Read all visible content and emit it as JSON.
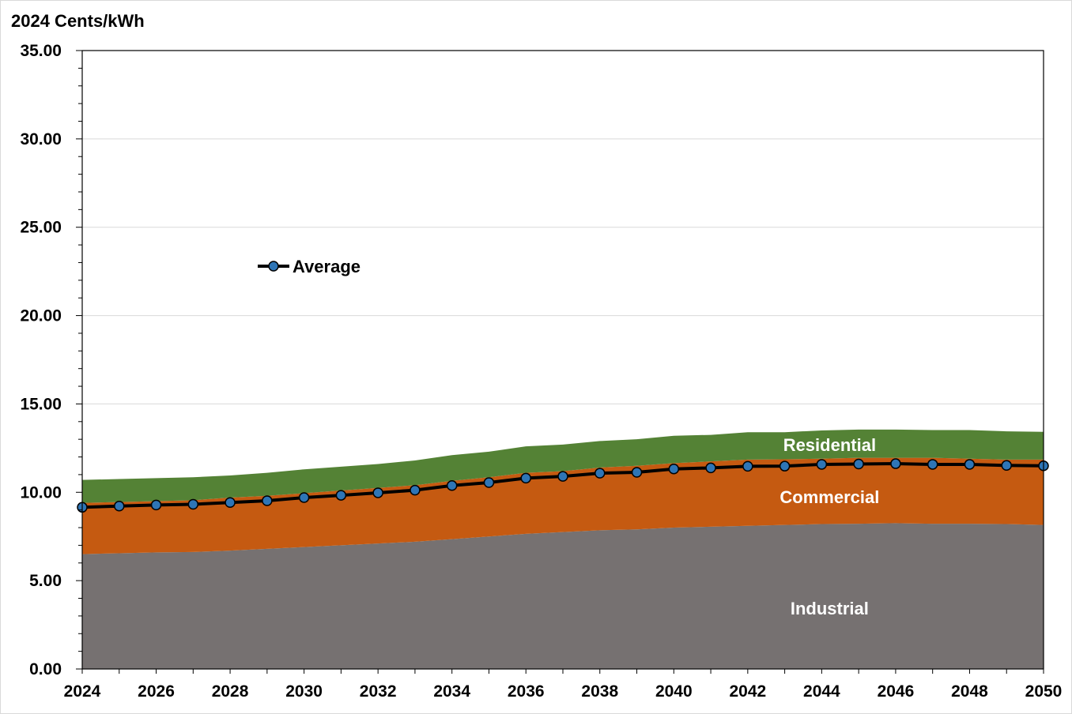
{
  "chart_data": {
    "type": "area",
    "ylabel": "2024 Cents/kWh",
    "ylim": [
      0,
      35
    ],
    "yticks": [
      "0.00",
      "5.00",
      "10.00",
      "15.00",
      "20.00",
      "25.00",
      "30.00",
      "35.00"
    ],
    "xlim": [
      2024,
      2050
    ],
    "xticks": [
      "2024",
      "2026",
      "2028",
      "2030",
      "2032",
      "2034",
      "2036",
      "2038",
      "2040",
      "2042",
      "2044",
      "2046",
      "2048",
      "2050"
    ],
    "x": [
      2024,
      2025,
      2026,
      2027,
      2028,
      2029,
      2030,
      2031,
      2032,
      2033,
      2034,
      2035,
      2036,
      2037,
      2038,
      2039,
      2040,
      2041,
      2042,
      2043,
      2044,
      2045,
      2046,
      2047,
      2048,
      2049,
      2050
    ],
    "stacked_series": [
      {
        "name": "Industrial",
        "color": "#767171",
        "values": [
          6.5,
          6.55,
          6.6,
          6.62,
          6.7,
          6.8,
          6.9,
          7.0,
          7.1,
          7.2,
          7.35,
          7.5,
          7.65,
          7.75,
          7.85,
          7.9,
          8.0,
          8.05,
          8.1,
          8.15,
          8.2,
          8.22,
          8.25,
          8.22,
          8.22,
          8.2,
          8.15
        ]
      },
      {
        "name": "Commercial",
        "color": "#C55A11",
        "values": [
          9.4,
          9.45,
          9.5,
          9.55,
          9.7,
          9.8,
          9.95,
          10.1,
          10.25,
          10.4,
          10.65,
          10.85,
          11.1,
          11.2,
          11.4,
          11.5,
          11.65,
          11.75,
          11.85,
          11.87,
          11.9,
          11.95,
          11.95,
          11.95,
          11.9,
          11.85,
          11.85
        ]
      },
      {
        "name": "Residential",
        "color": "#548235",
        "values": [
          10.7,
          10.75,
          10.8,
          10.85,
          10.95,
          11.1,
          11.3,
          11.45,
          11.6,
          11.8,
          12.1,
          12.3,
          12.6,
          12.7,
          12.9,
          13.0,
          13.2,
          13.25,
          13.4,
          13.4,
          13.5,
          13.55,
          13.55,
          13.52,
          13.52,
          13.45,
          13.42
        ]
      }
    ],
    "series": [
      {
        "name": "Average",
        "color": "#000000",
        "marker_color": "#2E75B6",
        "values": [
          9.15,
          9.22,
          9.28,
          9.32,
          9.42,
          9.52,
          9.7,
          9.83,
          9.97,
          10.12,
          10.38,
          10.55,
          10.8,
          10.9,
          11.08,
          11.13,
          11.32,
          11.38,
          11.47,
          11.48,
          11.58,
          11.6,
          11.62,
          11.58,
          11.58,
          11.52,
          11.5
        ]
      }
    ],
    "legend": {
      "placement": "upper-left",
      "entries": [
        "Average"
      ]
    },
    "grid": true
  }
}
